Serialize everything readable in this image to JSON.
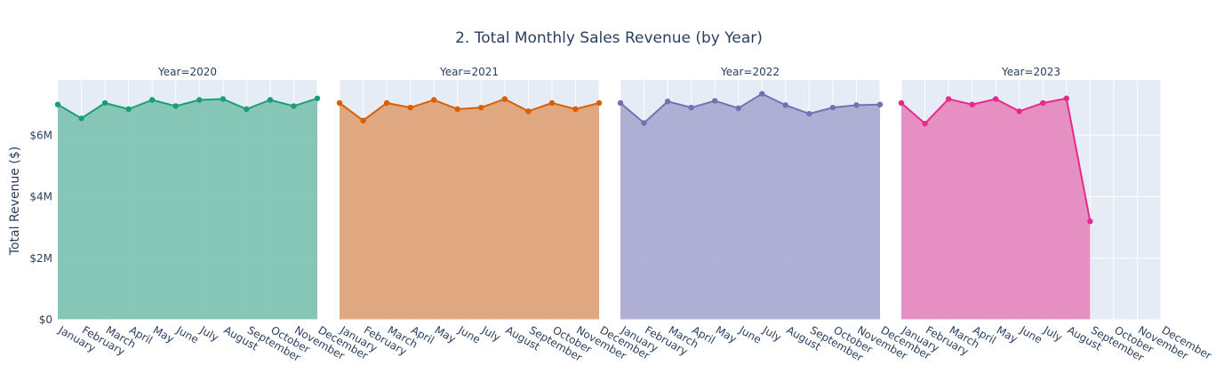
{
  "chart_data": {
    "type": "area",
    "title": "2. Total Monthly Sales Revenue (by Year)",
    "ylabel": "Total Revenue ($)",
    "xlabel": "",
    "ylim": [
      0,
      7800000
    ],
    "yticks": [
      0,
      2000000,
      4000000,
      6000000
    ],
    "ytick_labels": [
      "$0",
      "$2M",
      "$4M",
      "$6M"
    ],
    "grid": true,
    "categories": [
      "January",
      "February",
      "March",
      "April",
      "May",
      "June",
      "July",
      "August",
      "September",
      "October",
      "November",
      "December"
    ],
    "facets": [
      {
        "title": "Year=2020",
        "color": "#1b9e77",
        "fill": "#7fc4b3",
        "values": [
          7000000,
          6550000,
          7050000,
          6850000,
          7150000,
          6950000,
          7150000,
          7180000,
          6850000,
          7150000,
          6950000,
          7200000
        ]
      },
      {
        "title": "Year=2021",
        "color": "#d95f02",
        "fill": "#dea47a",
        "values": [
          7050000,
          6480000,
          7050000,
          6900000,
          7150000,
          6850000,
          6900000,
          7180000,
          6780000,
          7050000,
          6850000,
          7050000
        ]
      },
      {
        "title": "Year=2022",
        "color": "#7570b3",
        "fill": "#acacd4",
        "values": [
          7050000,
          6400000,
          7100000,
          6900000,
          7120000,
          6880000,
          7350000,
          6980000,
          6700000,
          6900000,
          6980000,
          7000000
        ]
      },
      {
        "title": "Year=2023",
        "color": "#e7298a",
        "fill": "#e68ac0",
        "values": [
          7050000,
          6380000,
          7180000,
          7000000,
          7180000,
          6780000,
          7050000,
          7200000,
          3200000,
          null,
          null,
          null
        ]
      }
    ]
  },
  "colors": {
    "plot_background": "#e5ecf6",
    "grid": "#ffffff",
    "text": "#2a3f5f"
  }
}
